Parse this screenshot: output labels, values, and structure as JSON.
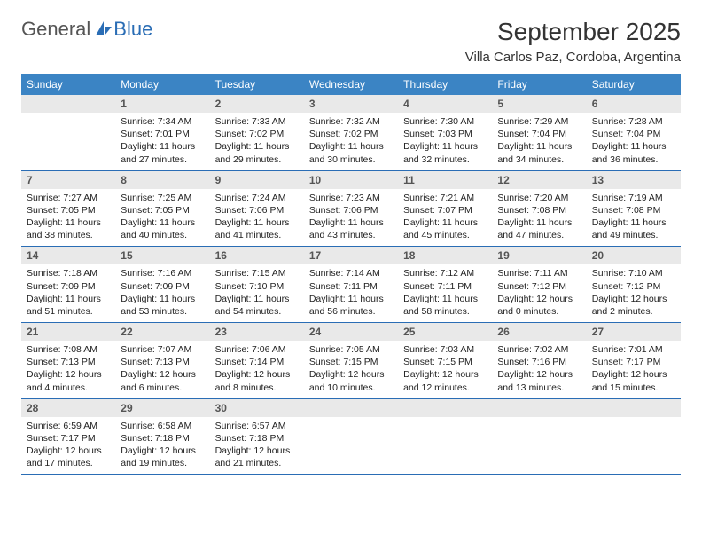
{
  "logo": {
    "text1": "General",
    "text2": "Blue"
  },
  "title": "September 2025",
  "location": "Villa Carlos Paz, Cordoba, Argentina",
  "colors": {
    "header_bg": "#3b84c4",
    "header_text": "#ffffff",
    "daynum_bg": "#e9e9e9",
    "week_border": "#2a6db5",
    "logo_blue": "#2a6db5"
  },
  "day_names": [
    "Sunday",
    "Monday",
    "Tuesday",
    "Wednesday",
    "Thursday",
    "Friday",
    "Saturday"
  ],
  "weeks": [
    [
      null,
      {
        "d": "1",
        "sr": "7:34 AM",
        "ss": "7:01 PM",
        "dl": "11 hours and 27 minutes."
      },
      {
        "d": "2",
        "sr": "7:33 AM",
        "ss": "7:02 PM",
        "dl": "11 hours and 29 minutes."
      },
      {
        "d": "3",
        "sr": "7:32 AM",
        "ss": "7:02 PM",
        "dl": "11 hours and 30 minutes."
      },
      {
        "d": "4",
        "sr": "7:30 AM",
        "ss": "7:03 PM",
        "dl": "11 hours and 32 minutes."
      },
      {
        "d": "5",
        "sr": "7:29 AM",
        "ss": "7:04 PM",
        "dl": "11 hours and 34 minutes."
      },
      {
        "d": "6",
        "sr": "7:28 AM",
        "ss": "7:04 PM",
        "dl": "11 hours and 36 minutes."
      }
    ],
    [
      {
        "d": "7",
        "sr": "7:27 AM",
        "ss": "7:05 PM",
        "dl": "11 hours and 38 minutes."
      },
      {
        "d": "8",
        "sr": "7:25 AM",
        "ss": "7:05 PM",
        "dl": "11 hours and 40 minutes."
      },
      {
        "d": "9",
        "sr": "7:24 AM",
        "ss": "7:06 PM",
        "dl": "11 hours and 41 minutes."
      },
      {
        "d": "10",
        "sr": "7:23 AM",
        "ss": "7:06 PM",
        "dl": "11 hours and 43 minutes."
      },
      {
        "d": "11",
        "sr": "7:21 AM",
        "ss": "7:07 PM",
        "dl": "11 hours and 45 minutes."
      },
      {
        "d": "12",
        "sr": "7:20 AM",
        "ss": "7:08 PM",
        "dl": "11 hours and 47 minutes."
      },
      {
        "d": "13",
        "sr": "7:19 AM",
        "ss": "7:08 PM",
        "dl": "11 hours and 49 minutes."
      }
    ],
    [
      {
        "d": "14",
        "sr": "7:18 AM",
        "ss": "7:09 PM",
        "dl": "11 hours and 51 minutes."
      },
      {
        "d": "15",
        "sr": "7:16 AM",
        "ss": "7:09 PM",
        "dl": "11 hours and 53 minutes."
      },
      {
        "d": "16",
        "sr": "7:15 AM",
        "ss": "7:10 PM",
        "dl": "11 hours and 54 minutes."
      },
      {
        "d": "17",
        "sr": "7:14 AM",
        "ss": "7:11 PM",
        "dl": "11 hours and 56 minutes."
      },
      {
        "d": "18",
        "sr": "7:12 AM",
        "ss": "7:11 PM",
        "dl": "11 hours and 58 minutes."
      },
      {
        "d": "19",
        "sr": "7:11 AM",
        "ss": "7:12 PM",
        "dl": "12 hours and 0 minutes."
      },
      {
        "d": "20",
        "sr": "7:10 AM",
        "ss": "7:12 PM",
        "dl": "12 hours and 2 minutes."
      }
    ],
    [
      {
        "d": "21",
        "sr": "7:08 AM",
        "ss": "7:13 PM",
        "dl": "12 hours and 4 minutes."
      },
      {
        "d": "22",
        "sr": "7:07 AM",
        "ss": "7:13 PM",
        "dl": "12 hours and 6 minutes."
      },
      {
        "d": "23",
        "sr": "7:06 AM",
        "ss": "7:14 PM",
        "dl": "12 hours and 8 minutes."
      },
      {
        "d": "24",
        "sr": "7:05 AM",
        "ss": "7:15 PM",
        "dl": "12 hours and 10 minutes."
      },
      {
        "d": "25",
        "sr": "7:03 AM",
        "ss": "7:15 PM",
        "dl": "12 hours and 12 minutes."
      },
      {
        "d": "26",
        "sr": "7:02 AM",
        "ss": "7:16 PM",
        "dl": "12 hours and 13 minutes."
      },
      {
        "d": "27",
        "sr": "7:01 AM",
        "ss": "7:17 PM",
        "dl": "12 hours and 15 minutes."
      }
    ],
    [
      {
        "d": "28",
        "sr": "6:59 AM",
        "ss": "7:17 PM",
        "dl": "12 hours and 17 minutes."
      },
      {
        "d": "29",
        "sr": "6:58 AM",
        "ss": "7:18 PM",
        "dl": "12 hours and 19 minutes."
      },
      {
        "d": "30",
        "sr": "6:57 AM",
        "ss": "7:18 PM",
        "dl": "12 hours and 21 minutes."
      },
      null,
      null,
      null,
      null
    ]
  ],
  "labels": {
    "sunrise": "Sunrise:",
    "sunset": "Sunset:",
    "daylight": "Daylight:"
  }
}
